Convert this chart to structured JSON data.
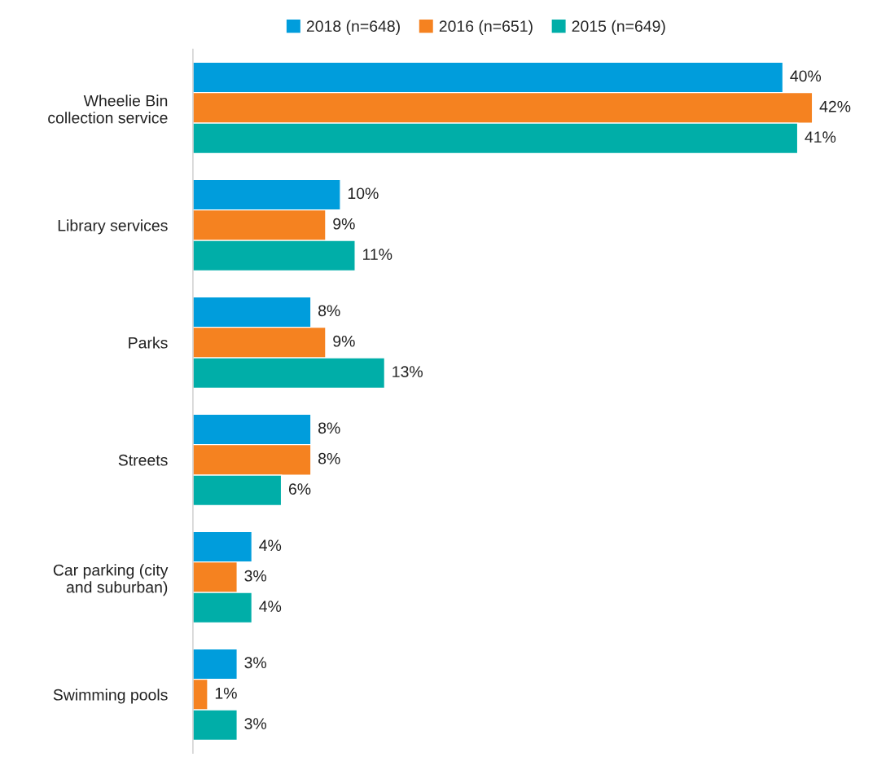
{
  "chart_data": {
    "type": "bar",
    "orientation": "horizontal",
    "categories": [
      "Wheelie Bin\ncollection service",
      "Library services",
      "Parks",
      "Streets",
      "Car parking (city\nand suburban)",
      "Swimming pools"
    ],
    "series": [
      {
        "name": "2018 (n=648)",
        "color": "#009ddc",
        "values": [
          40,
          10,
          8,
          8,
          4,
          3
        ],
        "value_labels": [
          "40%",
          "10%",
          "8%",
          "8%",
          "4%",
          "3%"
        ]
      },
      {
        "name": "2016 (n=651)",
        "color": "#f58220",
        "values": [
          42,
          9,
          9,
          8,
          3,
          1
        ],
        "value_labels": [
          "42%",
          "9%",
          "9%",
          "8%",
          "3%",
          "1%"
        ]
      },
      {
        "name": "2015 (n=649)",
        "color": "#00aea8",
        "values": [
          41,
          11,
          13,
          6,
          4,
          3
        ],
        "value_labels": [
          "41%",
          "11%",
          "13%",
          "6%",
          "4%",
          "3%"
        ]
      }
    ],
    "legend": "top",
    "grid": false
  }
}
